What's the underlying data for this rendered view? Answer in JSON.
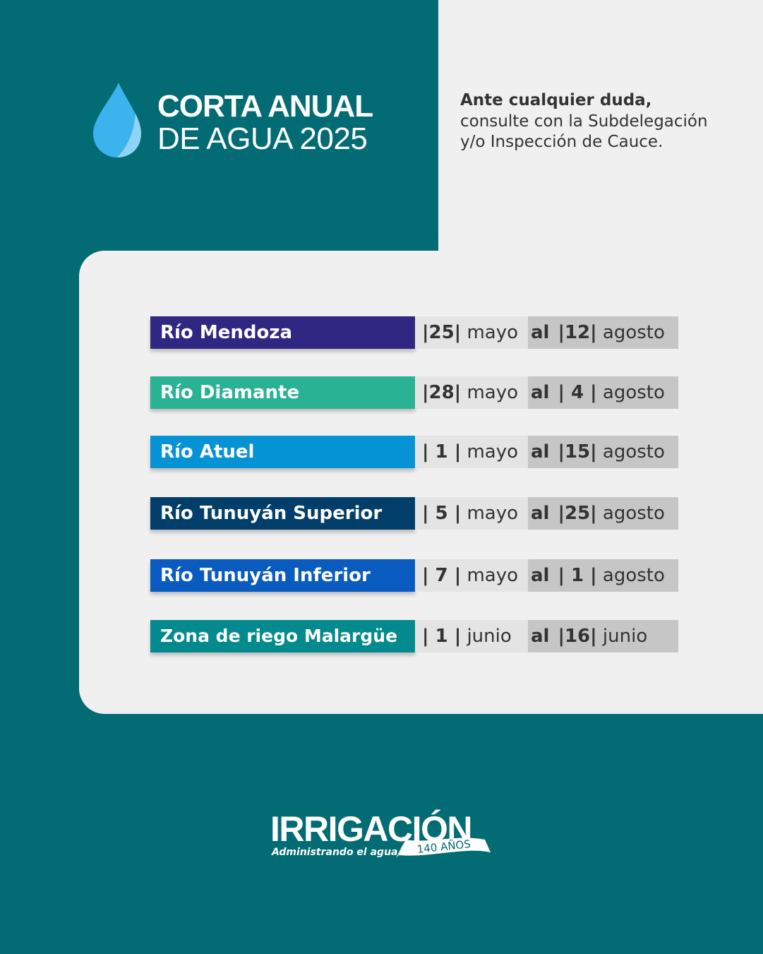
{
  "header": {
    "title_line1": "CORTA ANUAL",
    "title_line2": "DE AGUA 2025",
    "drop_icon": "water-drop-icon"
  },
  "note": {
    "line1": "Ante cualquier duda,",
    "line2": "consulte con la Subdelegación",
    "line3": "y/o Inspección de Cauce."
  },
  "schedule": [
    {
      "name": "Río Mendoza",
      "color": "#302782",
      "start_num": "|25|",
      "start_month": "mayo",
      "al": "al",
      "end_num": "|12|",
      "end_month": "agosto"
    },
    {
      "name": "Río Diamante",
      "color": "#29b293",
      "start_num": "|28|",
      "start_month": "mayo",
      "al": "al",
      "end_num": "| 4 |",
      "end_month": "agosto"
    },
    {
      "name": "Río Atuel",
      "color": "#0693d5",
      "start_num": "| 1 |",
      "start_month": "mayo",
      "al": "al",
      "end_num": "|15|",
      "end_month": "agosto"
    },
    {
      "name": "Río Tunuyán Superior",
      "color": "#023e6a",
      "start_num": "| 5 |",
      "start_month": "mayo",
      "al": "al",
      "end_num": "|25|",
      "end_month": "agosto"
    },
    {
      "name": "Río Tunuyán Inferior",
      "color": "#0a5bc0",
      "start_num": "| 7 |",
      "start_month": "mayo",
      "al": "al",
      "end_num": "| 1 |",
      "end_month": "agosto"
    },
    {
      "name": "Zona de riego Malargüe",
      "color": "#038a8f",
      "start_num": "| 1 |",
      "start_month": "junio",
      "al": "al",
      "end_num": "|16|",
      "end_month": "junio"
    }
  ],
  "logo": {
    "brand": "IRRIGACIÓN",
    "tagline": "Administrando el agua",
    "anniversary": "140 AÑOS"
  },
  "colors": {
    "background_teal": "#026b73",
    "panel_light": "#f0f0f0",
    "start_cell": "#e4e4e4",
    "end_cell": "#c6c6c6"
  }
}
